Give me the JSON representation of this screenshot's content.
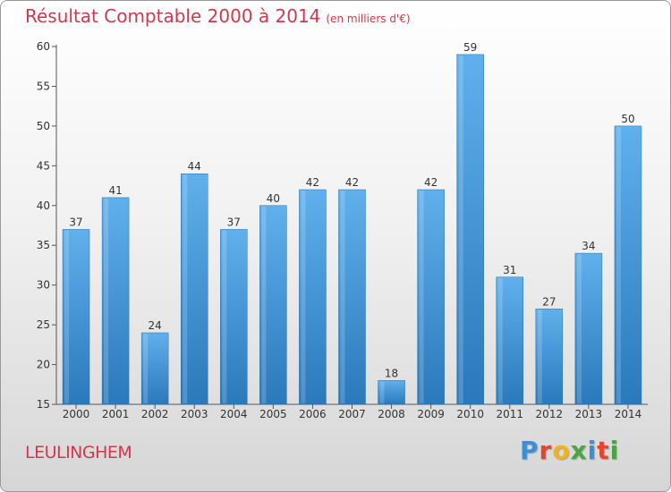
{
  "header": {
    "title": "Résultat Comptable 2000 à 2014",
    "subtitle": "(en milliers d'€)"
  },
  "footer": {
    "commune": "LEULINGHEM",
    "logo_letters": [
      "P",
      "r",
      "o",
      "x",
      "i",
      "t",
      "i"
    ],
    "logo_colors": [
      "#3a8fd6",
      "#e8432d",
      "#f2b31a",
      "#49a642",
      "#3a8fd6",
      "#e8432d",
      "#49a642"
    ]
  },
  "chart_data": {
    "type": "bar",
    "categories": [
      "2000",
      "2001",
      "2002",
      "2003",
      "2004",
      "2005",
      "2006",
      "2007",
      "2008",
      "2009",
      "2010",
      "2011",
      "2012",
      "2013",
      "2014"
    ],
    "values": [
      37,
      41,
      24,
      44,
      37,
      40,
      42,
      42,
      18,
      42,
      59,
      31,
      27,
      34,
      50
    ],
    "title": "Résultat Comptable 2000 à 2014",
    "xlabel": "",
    "ylabel": "",
    "ylim": [
      15,
      60
    ],
    "yticks": [
      15,
      20,
      25,
      30,
      35,
      40,
      45,
      50,
      55,
      60
    ],
    "grid": false,
    "bar_color_top": "#5fb0ec",
    "bar_color_bottom": "#2a79bb"
  }
}
